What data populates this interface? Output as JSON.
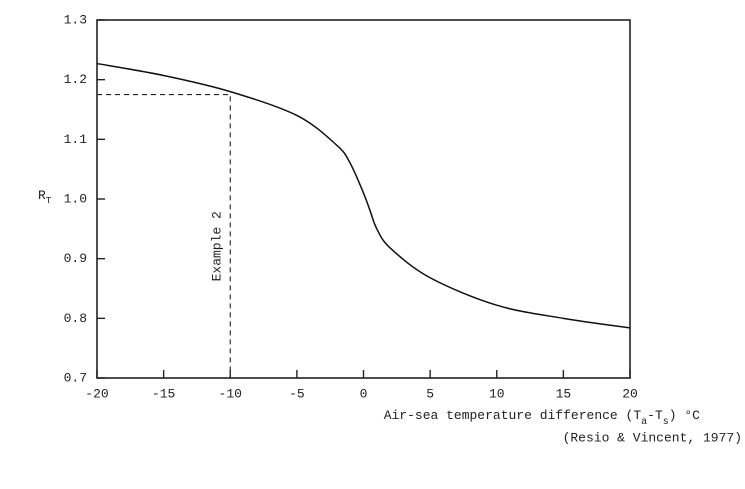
{
  "chart_data": {
    "type": "line",
    "ylabel": "R",
    "ylabel_subscript": "T",
    "xlabel": [
      "Air-sea temperature difference  (T",
      "a",
      "-T",
      "s",
      ")  °C"
    ],
    "source": "(Resio & Vincent, 1977)",
    "x": [
      -20,
      -15,
      -10,
      -5,
      -2,
      -1,
      0,
      0.5,
      1,
      2,
      5,
      10,
      15,
      20
    ],
    "series": [
      {
        "name": "R_T",
        "color": "#111111",
        "values": [
          1.227,
          1.207,
          1.18,
          1.14,
          1.09,
          1.06,
          1.01,
          0.98,
          0.95,
          0.918,
          0.868,
          0.822,
          0.8,
          0.784
        ]
      }
    ],
    "reference": {
      "x": -10,
      "y": 1.175,
      "label": "Example 2"
    },
    "xlim": [
      -20,
      20
    ],
    "xticks": [
      -20,
      -15,
      -10,
      -5,
      0,
      5,
      10,
      15,
      20
    ],
    "ylim": [
      0.7,
      1.3
    ],
    "yticks": [
      0.7,
      0.8,
      0.9,
      {
        "value": 1,
        "label": "1.0"
      },
      1.1,
      1.2,
      1.3
    ],
    "grid": false
  }
}
